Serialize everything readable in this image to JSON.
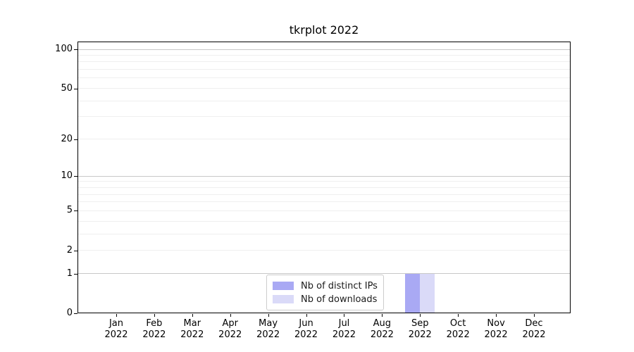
{
  "chart_data": {
    "type": "bar",
    "title": "tkrplot 2022",
    "categories": [
      "Jan 2022",
      "Feb 2022",
      "Mar 2022",
      "Apr 2022",
      "May 2022",
      "Jun 2022",
      "Jul 2022",
      "Aug 2022",
      "Sep 2022",
      "Oct 2022",
      "Nov 2022",
      "Dec 2022"
    ],
    "series": [
      {
        "name": "Nb of distinct IPs",
        "color": "#a9a9f4",
        "values": [
          0,
          0,
          0,
          0,
          0,
          0,
          0,
          0,
          1,
          0,
          0,
          0
        ]
      },
      {
        "name": "Nb of downloads",
        "color": "#dadaf8",
        "values": [
          0,
          0,
          0,
          0,
          0,
          0,
          0,
          0,
          1,
          0,
          0,
          0
        ]
      }
    ],
    "xlabel": "",
    "ylabel": "",
    "y_scale": "log1p",
    "y_ticks": [
      0,
      1,
      2,
      5,
      10,
      20,
      50,
      100
    ],
    "ylim": [
      0,
      115
    ],
    "grid": true,
    "y_gridlines_major": [
      1,
      10,
      100
    ],
    "y_gridlines_minor": [
      2,
      3,
      4,
      5,
      6,
      7,
      8,
      9,
      20,
      30,
      40,
      50,
      60,
      70,
      80,
      90
    ],
    "legend": {
      "position": "lower center",
      "entries": [
        "Nb of distinct IPs",
        "Nb of downloads"
      ]
    },
    "colors": {
      "background": "#ffffff",
      "axis": "#000000",
      "text": "#000000",
      "grid_major": "#c8c8c8",
      "grid_minor": "#efefef",
      "legend_border": "#cccccc"
    }
  }
}
